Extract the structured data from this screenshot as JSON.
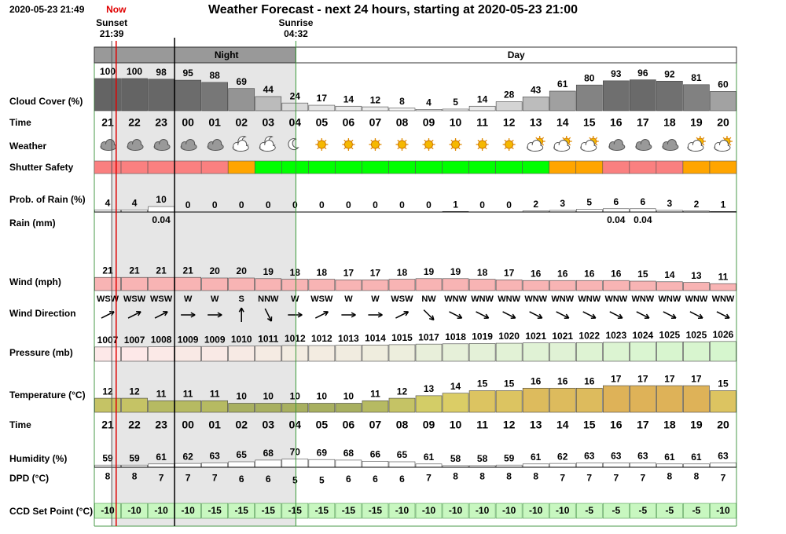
{
  "header": {
    "timestamp": "2020-05-23 21:49",
    "title": "Weather Forecast - next 24 hours, starting at 2020-05-23 21:00"
  },
  "markers": {
    "now": "Now",
    "sunset": {
      "label": "Sunset",
      "time": "21:39"
    },
    "sunrise": {
      "label": "Sunrise",
      "time": "04:32"
    }
  },
  "periods": {
    "night": "Night",
    "day": "Day"
  },
  "hours": [
    "21",
    "22",
    "23",
    "00",
    "01",
    "02",
    "03",
    "04",
    "05",
    "06",
    "07",
    "08",
    "09",
    "10",
    "11",
    "12",
    "13",
    "14",
    "15",
    "16",
    "17",
    "18",
    "19",
    "20"
  ],
  "rows": {
    "cloud_cover": {
      "label": "Cloud Cover (%)",
      "values": [
        100,
        100,
        98,
        95,
        88,
        69,
        44,
        24,
        17,
        14,
        12,
        8,
        4,
        5,
        14,
        28,
        43,
        61,
        80,
        93,
        96,
        92,
        81,
        60
      ]
    },
    "time": {
      "label": "Time"
    },
    "weather": {
      "label": "Weather"
    },
    "shutter_safety": {
      "label": "Shutter Safety",
      "colors": [
        "#fa8080",
        "#fa8080",
        "#fa8080",
        "#fa8080",
        "#fa8080",
        "#ffa500",
        "#00ff00",
        "#00ff00",
        "#00ff00",
        "#00ff00",
        "#00ff00",
        "#00ff00",
        "#00ff00",
        "#00ff00",
        "#00ff00",
        "#00ff00",
        "#00ff00",
        "#ffa500",
        "#ffa500",
        "#fa8080",
        "#fa8080",
        "#fa8080",
        "#ffa500",
        "#ffa500"
      ]
    },
    "rain_probability": {
      "label": "Prob. of Rain (%)",
      "values": [
        4,
        4,
        10,
        0,
        0,
        0,
        0,
        0,
        0,
        0,
        0,
        0,
        0,
        1,
        0,
        0,
        2,
        3,
        5,
        6,
        6,
        3,
        2,
        1
      ]
    },
    "rain": {
      "label": "Rain (mm)",
      "values": [
        null,
        null,
        0.04,
        null,
        null,
        null,
        null,
        null,
        null,
        null,
        null,
        null,
        null,
        null,
        null,
        null,
        null,
        null,
        null,
        0.04,
        0.04,
        null,
        null,
        null
      ]
    },
    "wind": {
      "label": "Wind (mph)",
      "values": [
        21,
        21,
        21,
        21,
        20,
        20,
        19,
        18,
        18,
        17,
        17,
        18,
        19,
        19,
        18,
        17,
        16,
        16,
        16,
        16,
        15,
        14,
        13,
        11
      ]
    },
    "wind_direction": {
      "label": "Wind Direction",
      "values": [
        "WSW",
        "WSW",
        "WSW",
        "W",
        "W",
        "S",
        "NNW",
        "W",
        "WSW",
        "W",
        "W",
        "WSW",
        "NW",
        "WNW",
        "WNW",
        "WNW",
        "WNW",
        "WNW",
        "WNW",
        "WNW",
        "WNW",
        "WNW",
        "WNW",
        "WNW"
      ]
    },
    "pressure": {
      "label": "Pressure (mb)",
      "values": [
        1007,
        1007,
        1008,
        1009,
        1009,
        1010,
        1011,
        1012,
        1012,
        1013,
        1014,
        1015,
        1017,
        1018,
        1019,
        1020,
        1021,
        1021,
        1022,
        1023,
        1024,
        1025,
        1025,
        1026
      ]
    },
    "temperature": {
      "label": "Temperature (°C)",
      "values": [
        12,
        12,
        11,
        11,
        11,
        10,
        10,
        10,
        10,
        10,
        11,
        12,
        13,
        14,
        15,
        15,
        16,
        16,
        16,
        17,
        17,
        17,
        17,
        15
      ]
    },
    "time_2": {
      "label": "Time"
    },
    "humidity": {
      "label": "Humidity (%)",
      "values": [
        59,
        59,
        61,
        62,
        63,
        65,
        68,
        70,
        69,
        68,
        66,
        65,
        61,
        58,
        58,
        59,
        61,
        62,
        63,
        63,
        63,
        61,
        61,
        63
      ]
    },
    "dpd": {
      "label": "DPD (°C)",
      "values": [
        8,
        8,
        7,
        7,
        7,
        6,
        6,
        5,
        5,
        6,
        6,
        6,
        7,
        8,
        8,
        8,
        8,
        7,
        7,
        7,
        7,
        8,
        8,
        7
      ]
    },
    "ccd_set_point": {
      "label": "CCD Set Point (°C)",
      "values": [
        -10,
        -10,
        -10,
        -10,
        -15,
        -15,
        -15,
        -15,
        -15,
        -15,
        -15,
        -10,
        -10,
        -10,
        -10,
        -10,
        -10,
        -10,
        -5,
        -5,
        -5,
        -5,
        -5,
        -10
      ]
    }
  }
}
